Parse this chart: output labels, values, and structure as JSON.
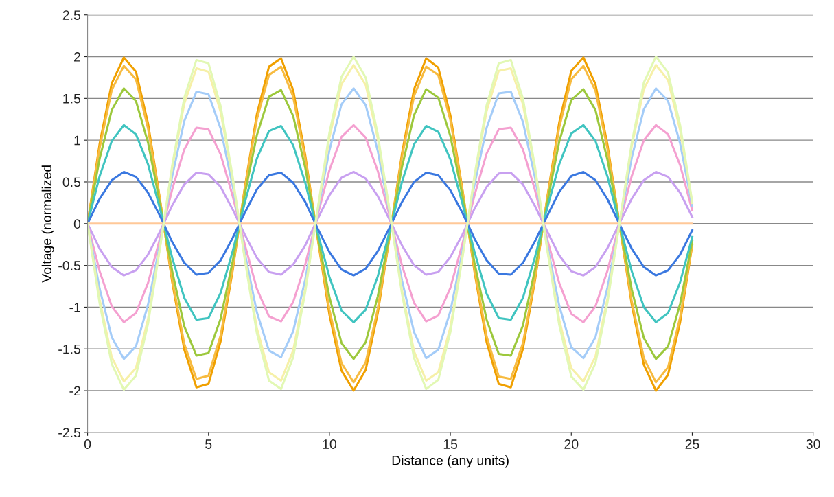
{
  "chart_data": {
    "type": "line",
    "xlabel": "Distance (any units)",
    "ylabel": "Voltage (normalized",
    "xlim": [
      0,
      30
    ],
    "xticks": [
      0,
      5,
      10,
      15,
      20,
      25,
      30
    ],
    "ylim": [
      -2.5,
      2.5
    ],
    "yticks": [
      -2.5,
      -2,
      -1.5,
      -1,
      -0.5,
      0,
      0.5,
      1,
      1.5,
      2,
      2.5
    ],
    "grid": "y",
    "marker": "none",
    "line_style": "solid",
    "x": [
      0,
      0.5,
      1,
      1.5,
      2,
      2.5,
      3,
      3.5,
      4,
      4.5,
      5,
      5.5,
      6,
      6.5,
      7,
      7.5,
      8,
      8.5,
      9,
      9.5,
      10,
      10.5,
      11,
      11.5,
      12,
      12.5,
      13,
      13.5,
      14,
      14.5,
      15,
      15.5,
      16,
      16.5,
      17,
      17.5,
      18,
      18.5,
      19,
      19.5,
      20,
      20.5,
      21,
      21.5,
      22,
      22.5,
      23,
      23.5,
      24,
      24.5,
      25
    ],
    "series": [
      {
        "color": "#f0a000",
        "values": [
          0,
          0.96,
          1.68,
          1.99,
          1.82,
          1.2,
          0.28,
          -0.7,
          -1.51,
          -1.96,
          -1.92,
          -1.41,
          -0.56,
          0.43,
          1.31,
          1.88,
          1.98,
          1.6,
          0.82,
          -0.15,
          -1.09,
          -1.76,
          -2,
          -1.75,
          -1.07,
          -0.13,
          0.84,
          1.61,
          1.98,
          1.87,
          1.3,
          0.41,
          -0.58,
          -1.42,
          -1.92,
          -1.96,
          -1.5,
          -0.68,
          0.3,
          1.21,
          1.83,
          1.99,
          1.67,
          0.94,
          -0.02,
          -0.97,
          -1.69,
          -2,
          -1.81,
          -1.18,
          -0.26
        ]
      },
      {
        "color": "#f7bb40",
        "values": [
          0,
          0.91,
          1.6,
          1.89,
          1.73,
          1.14,
          0.27,
          -0.67,
          -1.44,
          -1.86,
          -1.82,
          -1.34,
          -0.53,
          0.41,
          1.25,
          1.78,
          1.88,
          1.52,
          0.78,
          -0.14,
          -1.03,
          -1.67,
          -1.9,
          -1.66,
          -1.02,
          -0.13,
          0.8,
          1.53,
          1.88,
          1.78,
          1.24,
          0.39,
          -0.55,
          -1.35,
          -1.83,
          -1.86,
          -1.43,
          -0.65,
          0.29,
          1.15,
          1.73,
          1.89,
          1.59,
          0.89,
          -0.02,
          -0.93,
          -1.61,
          -1.9,
          -1.72,
          -1.12,
          -0.25
        ]
      },
      {
        "color": "#9cc83c",
        "values": [
          0,
          0.78,
          1.36,
          1.62,
          1.47,
          0.97,
          0.23,
          -0.57,
          -1.23,
          -1.58,
          -1.55,
          -1.14,
          -0.45,
          0.35,
          1.06,
          1.52,
          1.6,
          1.29,
          0.67,
          -0.12,
          -0.88,
          -1.43,
          -1.62,
          -1.42,
          -0.87,
          -0.11,
          0.68,
          1.3,
          1.61,
          1.51,
          1.05,
          0.33,
          -0.47,
          -1.15,
          -1.56,
          -1.58,
          -1.22,
          -0.55,
          0.24,
          0.98,
          1.48,
          1.61,
          1.36,
          0.76,
          -0.01,
          -0.79,
          -1.37,
          -1.62,
          -1.47,
          -0.96,
          -0.21
        ]
      },
      {
        "color": "#40c4c0",
        "values": [
          0,
          0.57,
          0.99,
          1.18,
          1.07,
          0.71,
          0.17,
          -0.41,
          -0.89,
          -1.15,
          -1.13,
          -0.83,
          -0.33,
          0.25,
          0.78,
          1.11,
          1.17,
          0.94,
          0.49,
          -0.09,
          -0.64,
          -1.04,
          -1.18,
          -1.03,
          -0.63,
          -0.08,
          0.5,
          0.95,
          1.17,
          1.1,
          0.77,
          0.24,
          -0.34,
          -0.84,
          -1.13,
          -1.15,
          -0.89,
          -0.4,
          0.18,
          0.71,
          1.08,
          1.18,
          0.99,
          0.56,
          -0.01,
          -0.57,
          -1.0,
          -1.18,
          -1.07,
          -0.7,
          -0.16
        ]
      },
      {
        "color": "#3a78e0",
        "values": [
          0,
          0.3,
          0.52,
          0.62,
          0.56,
          0.37,
          0.09,
          -0.22,
          -0.47,
          -0.61,
          -0.59,
          -0.44,
          -0.17,
          0.13,
          0.41,
          0.58,
          0.61,
          0.49,
          0.26,
          -0.05,
          -0.34,
          -0.55,
          -0.62,
          -0.54,
          -0.33,
          -0.04,
          0.26,
          0.5,
          0.61,
          0.58,
          0.4,
          0.13,
          -0.18,
          -0.44,
          -0.6,
          -0.61,
          -0.47,
          -0.21,
          0.09,
          0.38,
          0.57,
          0.62,
          0.52,
          0.29,
          -0.01,
          -0.3,
          -0.52,
          -0.62,
          -0.56,
          -0.37,
          -0.08
        ]
      },
      {
        "color": "#ffc898",
        "values": [
          0,
          0,
          0,
          0,
          0,
          0,
          0,
          0,
          0,
          0,
          0,
          0,
          0,
          0,
          0,
          0,
          0,
          0,
          0,
          0,
          0,
          0,
          0,
          0,
          0,
          0,
          0,
          0,
          0,
          0,
          0,
          0,
          0,
          0,
          0,
          0,
          0,
          0,
          0,
          0,
          0,
          0,
          0,
          0,
          0,
          0,
          0,
          0,
          0,
          0,
          0
        ]
      },
      {
        "color": "#c8a0f0",
        "values": [
          0,
          -0.3,
          -0.52,
          -0.62,
          -0.56,
          -0.37,
          -0.09,
          0.22,
          0.47,
          0.61,
          0.59,
          0.44,
          0.17,
          -0.13,
          -0.41,
          -0.58,
          -0.61,
          -0.49,
          -0.26,
          0.05,
          0.34,
          0.55,
          0.62,
          0.54,
          0.33,
          0.04,
          -0.26,
          -0.5,
          -0.61,
          -0.58,
          -0.4,
          -0.13,
          0.18,
          0.44,
          0.6,
          0.61,
          0.47,
          0.21,
          -0.09,
          -0.38,
          -0.57,
          -0.62,
          -0.52,
          -0.29,
          0.01,
          0.3,
          0.52,
          0.62,
          0.56,
          0.37,
          0.08
        ]
      },
      {
        "color": "#f4a0d0",
        "values": [
          0,
          -0.57,
          -0.99,
          -1.18,
          -1.07,
          -0.71,
          -0.17,
          0.41,
          0.89,
          1.15,
          1.13,
          0.83,
          0.33,
          -0.25,
          -0.78,
          -1.11,
          -1.17,
          -0.94,
          -0.49,
          0.09,
          0.64,
          1.04,
          1.18,
          1.03,
          0.63,
          0.08,
          -0.5,
          -0.95,
          -1.17,
          -1.1,
          -0.77,
          -0.24,
          0.34,
          0.84,
          1.13,
          1.15,
          0.89,
          0.4,
          -0.18,
          -0.71,
          -1.08,
          -1.18,
          -0.99,
          -0.56,
          0.01,
          0.57,
          1.0,
          1.18,
          1.07,
          0.7,
          0.16
        ]
      },
      {
        "color": "#a4ccf8",
        "values": [
          0,
          -0.78,
          -1.36,
          -1.62,
          -1.47,
          -0.97,
          -0.23,
          0.57,
          1.23,
          1.58,
          1.55,
          1.14,
          0.45,
          -0.35,
          -1.06,
          -1.52,
          -1.6,
          -1.29,
          -0.67,
          0.12,
          0.88,
          1.43,
          1.62,
          1.42,
          0.87,
          0.11,
          -0.68,
          -1.3,
          -1.61,
          -1.51,
          -1.05,
          -0.33,
          0.47,
          1.15,
          1.56,
          1.58,
          1.22,
          0.55,
          -0.24,
          -0.98,
          -1.48,
          -1.61,
          -1.36,
          -0.76,
          0.01,
          0.79,
          1.37,
          1.62,
          1.47,
          0.96,
          0.21
        ]
      },
      {
        "color": "#f6f0a8",
        "values": [
          0,
          -0.91,
          -1.6,
          -1.89,
          -1.73,
          -1.14,
          -0.27,
          0.67,
          1.44,
          1.86,
          1.82,
          1.34,
          0.53,
          -0.41,
          -1.25,
          -1.78,
          -1.88,
          -1.52,
          -0.78,
          0.14,
          1.03,
          1.67,
          1.9,
          1.66,
          1.02,
          0.13,
          -0.8,
          -1.53,
          -1.88,
          -1.78,
          -1.24,
          -0.39,
          0.55,
          1.35,
          1.83,
          1.86,
          1.43,
          0.65,
          -0.29,
          -1.15,
          -1.73,
          -1.89,
          -1.59,
          -0.89,
          0.02,
          0.93,
          1.61,
          1.9,
          1.72,
          1.12,
          0.25
        ]
      },
      {
        "color": "#e2f8b4",
        "values": [
          0,
          -0.96,
          -1.68,
          -1.99,
          -1.82,
          -1.2,
          -0.28,
          0.7,
          1.51,
          1.96,
          1.92,
          1.41,
          0.56,
          -0.43,
          -1.31,
          -1.88,
          -1.98,
          -1.6,
          -0.82,
          0.15,
          1.09,
          1.76,
          2,
          1.75,
          1.07,
          0.13,
          -0.84,
          -1.61,
          -1.98,
          -1.87,
          -1.3,
          -0.41,
          0.58,
          1.42,
          1.92,
          1.96,
          1.5,
          0.68,
          -0.3,
          -1.21,
          -1.83,
          -1.99,
          -1.67,
          -0.94,
          0.02,
          0.97,
          1.69,
          2,
          1.81,
          1.18,
          0.26
        ]
      }
    ]
  }
}
